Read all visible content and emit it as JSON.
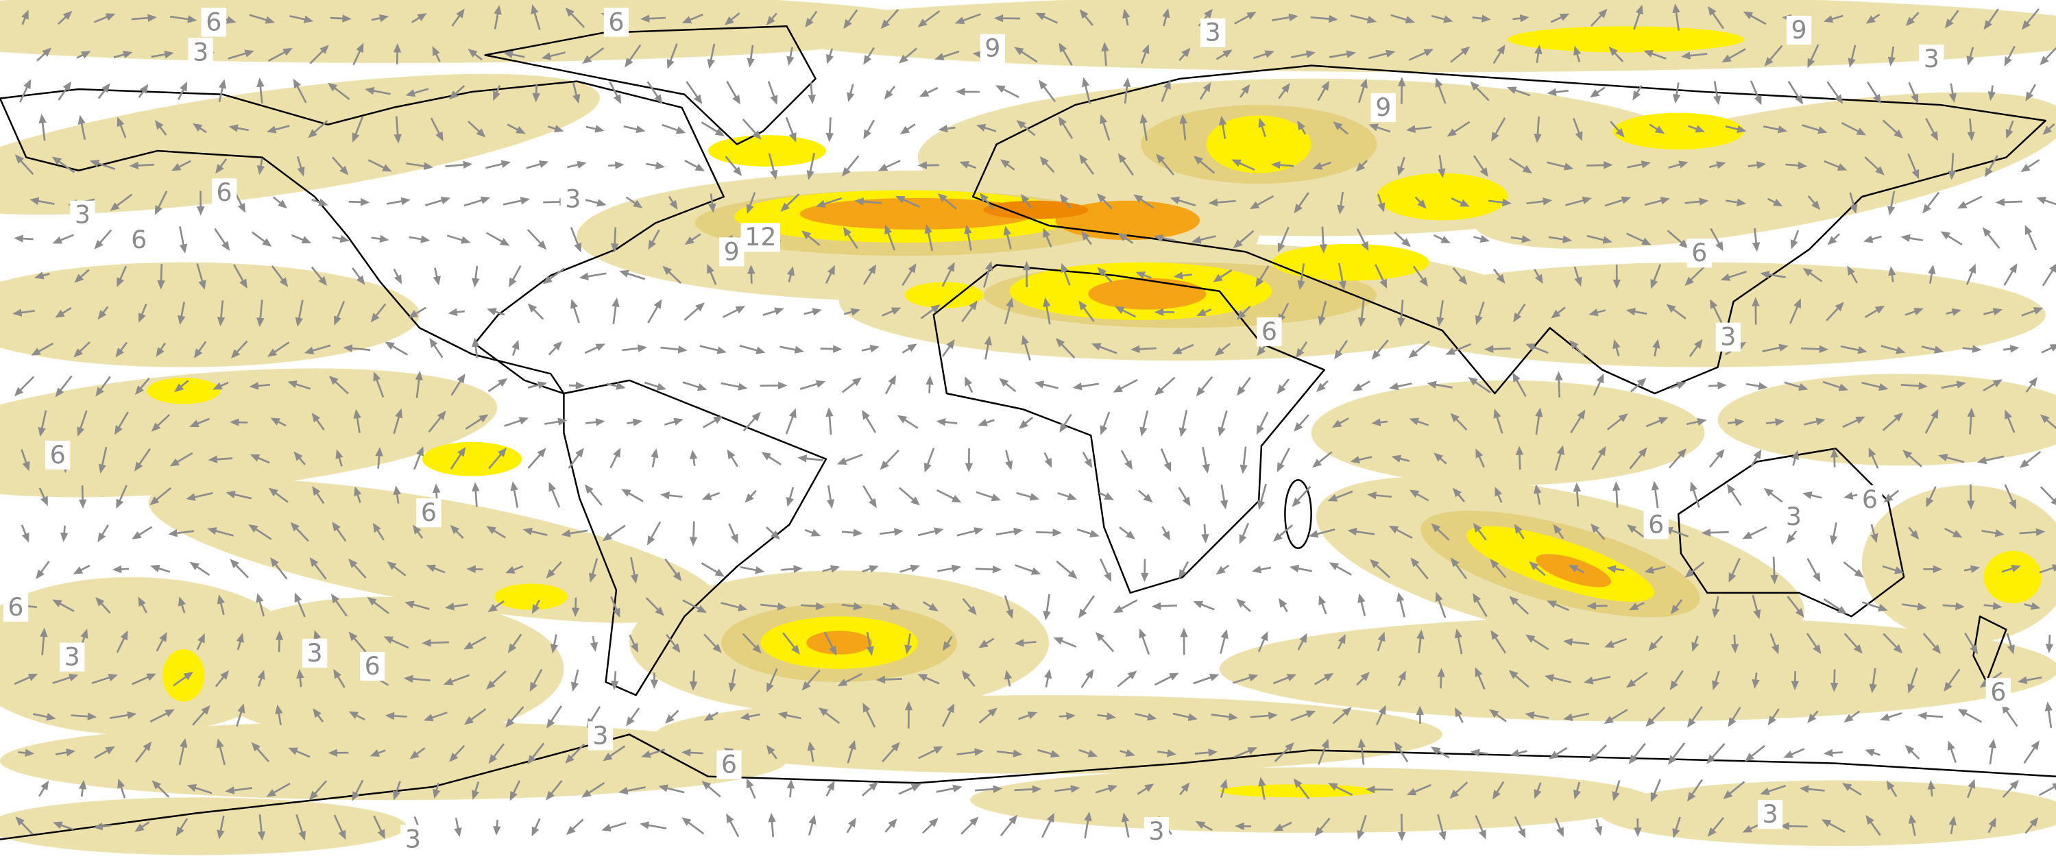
{
  "contour_labels": [
    "6",
    "6",
    "3",
    "9",
    "9",
    "3",
    "3",
    "9",
    "6",
    "3",
    "6",
    "3",
    "9",
    "12",
    "6",
    "6",
    "3",
    "6",
    "6",
    "6",
    "3",
    "6",
    "6",
    "3",
    "3",
    "6",
    "6",
    "3",
    "6",
    "3",
    "3",
    "3"
  ]
}
